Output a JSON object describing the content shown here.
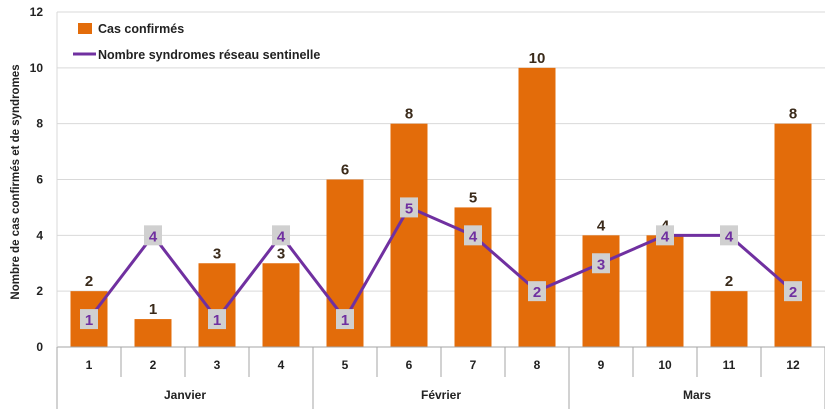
{
  "chart_data": {
    "type": "bar",
    "categories": [
      "1",
      "2",
      "3",
      "4",
      "5",
      "6",
      "7",
      "8",
      "9",
      "10",
      "11",
      "12"
    ],
    "groups": [
      {
        "label": "Janvier",
        "start": 0,
        "end": 3
      },
      {
        "label": "Février",
        "start": 4,
        "end": 7
      },
      {
        "label": "Mars",
        "start": 8,
        "end": 11
      }
    ],
    "series": [
      {
        "name": "Cas confirmés",
        "kind": "bar",
        "color": "#e36c0a",
        "values": [
          2,
          1,
          3,
          3,
          6,
          8,
          5,
          10,
          4,
          4,
          2,
          8
        ]
      },
      {
        "name": "Nombre syndromes réseau sentinelle",
        "kind": "line",
        "color": "#7030a0",
        "values": [
          1,
          4,
          1,
          4,
          1,
          5,
          4,
          2,
          3,
          4,
          4,
          2
        ]
      }
    ],
    "ylabel": "Nombre de cas confirmés et de syndromes",
    "ylim": [
      0,
      12
    ],
    "yticks": [
      0,
      2,
      4,
      6,
      8,
      10,
      12
    ],
    "grid": true,
    "legend": "top-left"
  }
}
